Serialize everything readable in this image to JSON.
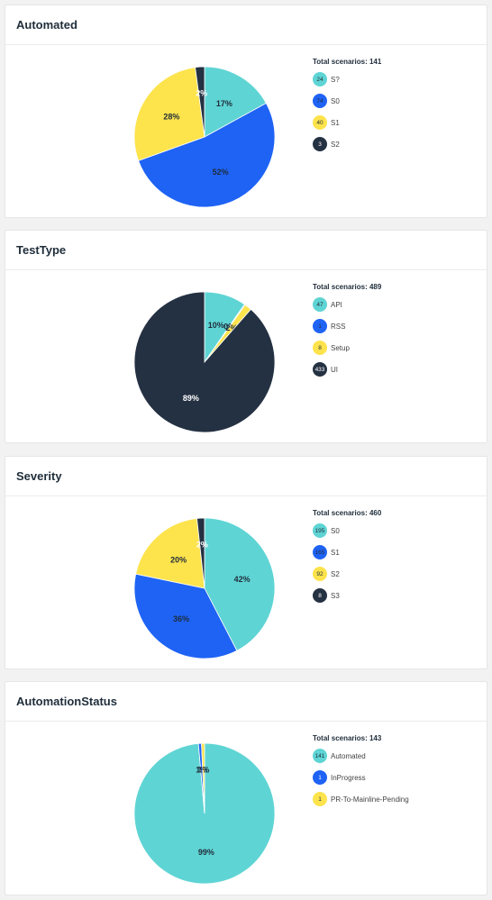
{
  "cards": [
    {
      "title": "Automated",
      "total_label": "Total scenarios: 141",
      "legend": [
        {
          "count": "24",
          "label": "S?",
          "color": "#5fd4d4"
        },
        {
          "count": "74",
          "label": "S0",
          "color": "#1f63f5"
        },
        {
          "count": "40",
          "label": "S1",
          "color": "#fde34c"
        },
        {
          "count": "3",
          "label": "S2",
          "color": "#243142"
        }
      ]
    },
    {
      "title": "TestType",
      "total_label": "Total scenarios: 489",
      "legend": [
        {
          "count": "47",
          "label": "API",
          "color": "#5fd4d4"
        },
        {
          "count": "1",
          "label": "RSS",
          "color": "#1f63f5"
        },
        {
          "count": "8",
          "label": "Setup",
          "color": "#fde34c"
        },
        {
          "count": "433",
          "label": "UI",
          "color": "#243142"
        }
      ]
    },
    {
      "title": "Severity",
      "total_label": "Total scenarios: 460",
      "legend": [
        {
          "count": "195",
          "label": "S0",
          "color": "#5fd4d4"
        },
        {
          "count": "165",
          "label": "S1",
          "color": "#1f63f5"
        },
        {
          "count": "92",
          "label": "S2",
          "color": "#fde34c"
        },
        {
          "count": "8",
          "label": "S3",
          "color": "#243142"
        }
      ]
    },
    {
      "title": "AutomationStatus",
      "total_label": "Total scenarios: 143",
      "legend": [
        {
          "count": "141",
          "label": "Automated",
          "color": "#5fd4d4"
        },
        {
          "count": "1",
          "label": "InProgress",
          "color": "#1f63f5"
        },
        {
          "count": "1",
          "label": "PR-To-Mainline-Pending",
          "color": "#fde34c"
        }
      ]
    }
  ],
  "chart_data": [
    {
      "type": "pie",
      "title": "Automated",
      "categories": [
        "S?",
        "S0",
        "S1",
        "S2"
      ],
      "values": [
        24,
        74,
        40,
        3
      ],
      "colors": [
        "#5fd4d4",
        "#1f63f5",
        "#fde34c",
        "#243142"
      ],
      "slice_labels": [
        "17%",
        "52%",
        "28%",
        "2%"
      ]
    },
    {
      "type": "pie",
      "title": "TestType",
      "categories": [
        "API",
        "RSS",
        "Setup",
        "UI"
      ],
      "values": [
        47,
        1,
        8,
        433
      ],
      "colors": [
        "#5fd4d4",
        "#1f63f5",
        "#fde34c",
        "#243142"
      ],
      "slice_labels": [
        "10%",
        "0%",
        "2%",
        "89%"
      ]
    },
    {
      "type": "pie",
      "title": "Severity",
      "categories": [
        "S0",
        "S1",
        "S2",
        "S3"
      ],
      "values": [
        195,
        165,
        92,
        8
      ],
      "colors": [
        "#5fd4d4",
        "#1f63f5",
        "#fde34c",
        "#243142"
      ],
      "slice_labels": [
        "42%",
        "36%",
        "20%",
        "2%"
      ]
    },
    {
      "type": "pie",
      "title": "AutomationStatus",
      "categories": [
        "Automated",
        "InProgress",
        "PR-To-Mainline-Pending"
      ],
      "values": [
        141,
        1,
        1
      ],
      "colors": [
        "#5fd4d4",
        "#1f63f5",
        "#fde34c"
      ],
      "slice_labels": [
        "99%",
        "1%",
        "1%"
      ]
    }
  ]
}
